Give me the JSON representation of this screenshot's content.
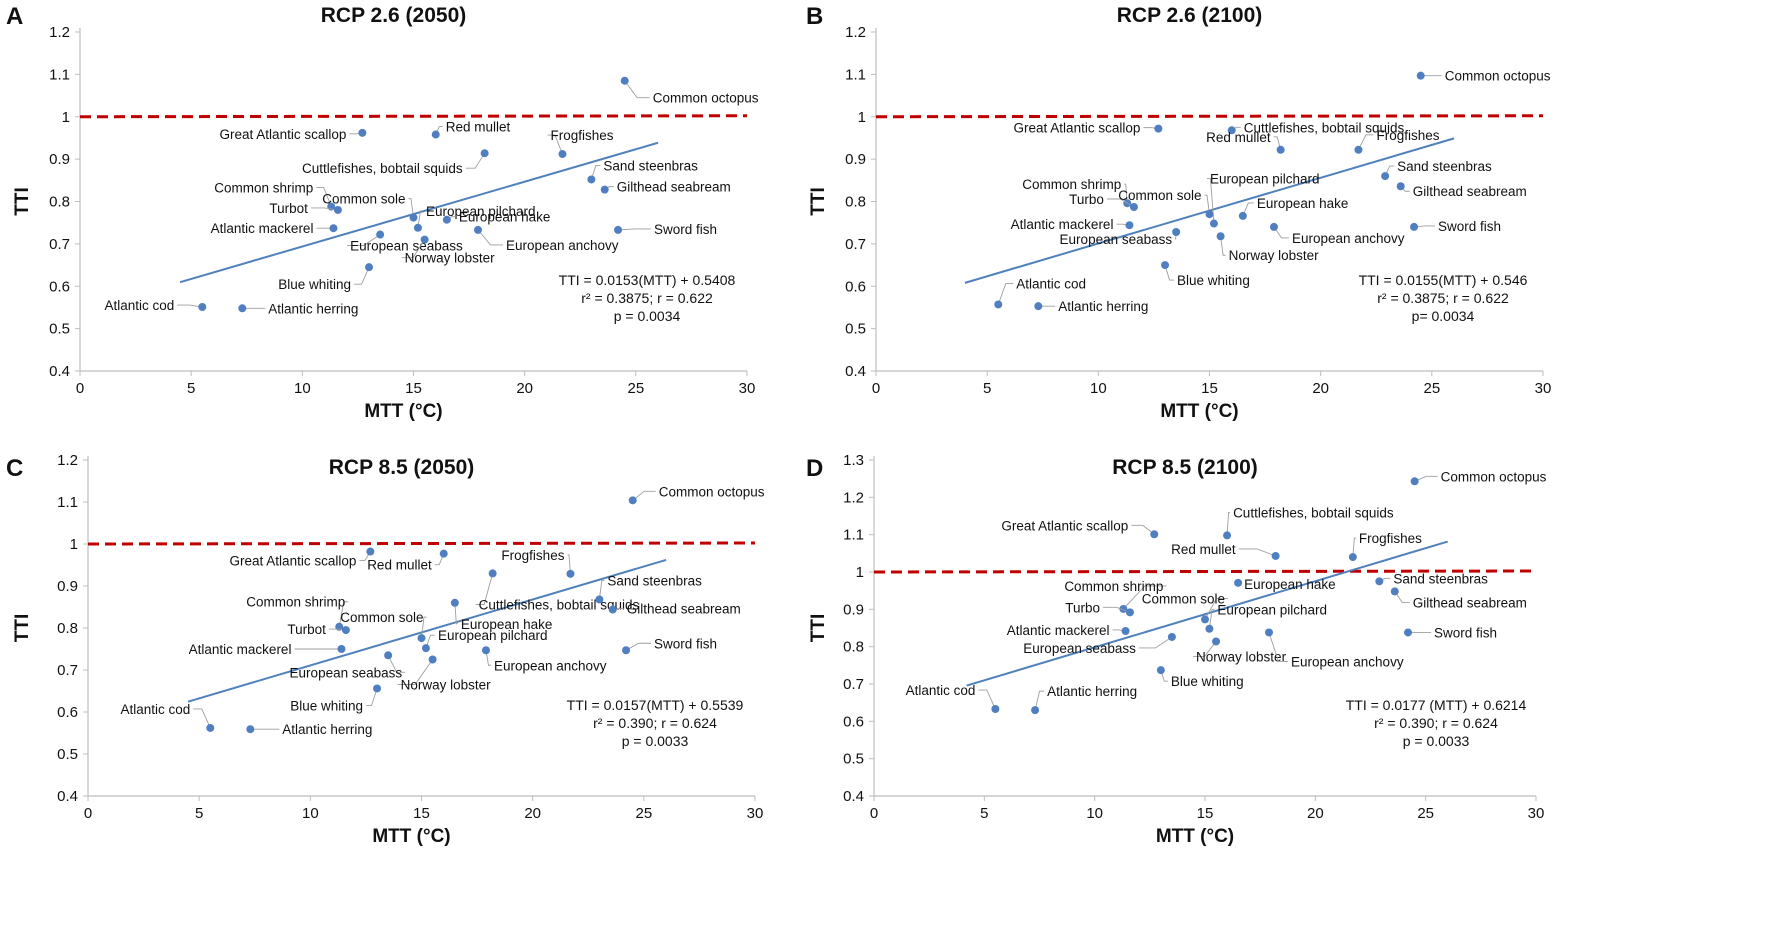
{
  "chart_data": [
    {
      "type": "scatter",
      "letter": "A",
      "title": "RCP 2.6 (2050)",
      "xlabel": "MTT (°C)",
      "ylabel": "TTI",
      "xlim": [
        0,
        30
      ],
      "ylim": [
        0.4,
        1.2
      ],
      "xticks": [
        "0",
        "5",
        "10",
        "15",
        "20",
        "25",
        "30"
      ],
      "yticks": [
        "0.4",
        "0.5",
        "0.6",
        "0.7",
        "0.8",
        "0.9",
        "1",
        "1.1",
        "1.2"
      ],
      "threshold": 1,
      "fit": {
        "x": [
          4.5,
          26
        ],
        "slope": 0.0153,
        "intercept": 0.5408
      },
      "equation_lines": [
        "TTI = 0.0153(MTT)  + 0.5408",
        "r² = 0.3875;  r = 0.622",
        "p = 0.0034"
      ],
      "points": [
        {
          "name": "Common octopus",
          "x": 24.5,
          "y": 1.085
        },
        {
          "name": "Great Atlantic scallop",
          "x": 12.7,
          "y": 0.962
        },
        {
          "name": "Red mullet",
          "x": 16.0,
          "y": 0.958
        },
        {
          "name": "Frogfishes",
          "x": 21.7,
          "y": 0.912
        },
        {
          "name": "Cuttlefishes,  bobtail squids",
          "x": 18.2,
          "y": 0.914
        },
        {
          "name": "Sand steenbras",
          "x": 23.0,
          "y": 0.852
        },
        {
          "name": "Gilthead seabream",
          "x": 23.6,
          "y": 0.828
        },
        {
          "name": "Common shrimp",
          "x": 11.3,
          "y": 0.788
        },
        {
          "name": "Turbot",
          "x": 11.6,
          "y": 0.78
        },
        {
          "name": "Common sole",
          "x": 15.0,
          "y": 0.762
        },
        {
          "name": "European pilchard",
          "x": 15.2,
          "y": 0.738
        },
        {
          "name": "European hake",
          "x": 16.5,
          "y": 0.757
        },
        {
          "name": "Atlantic mackerel",
          "x": 11.4,
          "y": 0.737
        },
        {
          "name": "European seabass",
          "x": 13.5,
          "y": 0.722
        },
        {
          "name": "Norway lobster",
          "x": 15.5,
          "y": 0.71
        },
        {
          "name": "European anchovy",
          "x": 17.9,
          "y": 0.733
        },
        {
          "name": "Sword fish",
          "x": 24.2,
          "y": 0.733
        },
        {
          "name": "Blue whiting",
          "x": 13.0,
          "y": 0.645
        },
        {
          "name": "Atlantic cod",
          "x": 5.5,
          "y": 0.551
        },
        {
          "name": "Atlantic herring",
          "x": 7.3,
          "y": 0.548
        }
      ]
    },
    {
      "type": "scatter",
      "letter": "B",
      "title": "RCP 2.6 (2100)",
      "xlabel": "MTT (°C)",
      "ylabel": "TTI",
      "xlim": [
        0,
        30
      ],
      "ylim": [
        0.4,
        1.2
      ],
      "xticks": [
        "0",
        "5",
        "10",
        "15",
        "20",
        "25",
        "30"
      ],
      "yticks": [
        "0.4",
        "0.5",
        "0.6",
        "0.7",
        "0.8",
        "0.9",
        "1",
        "1.1",
        "1.2"
      ],
      "threshold": 1,
      "fit": {
        "x": [
          4,
          26
        ],
        "slope": 0.0155,
        "intercept": 0.546
      },
      "equation_lines": [
        "TTI = 0.0155(MTT)  + 0.546",
        "r² = 0.3875;  r = 0.622",
        "p= 0.0034"
      ],
      "points": [
        {
          "name": "Common octopus",
          "x": 24.5,
          "y": 1.097
        },
        {
          "name": "Great Atlantic scallop",
          "x": 12.7,
          "y": 0.972
        },
        {
          "name": "Cuttlefishes,  bobtail squids",
          "x": 16.0,
          "y": 0.968
        },
        {
          "name": "Red mullet",
          "x": 18.2,
          "y": 0.922
        },
        {
          "name": "Frogfishes",
          "x": 21.7,
          "y": 0.922
        },
        {
          "name": "Sand steenbras",
          "x": 22.9,
          "y": 0.86
        },
        {
          "name": "Gilthead seabream",
          "x": 23.6,
          "y": 0.836
        },
        {
          "name": "Common shrimp",
          "x": 11.3,
          "y": 0.796
        },
        {
          "name": "Turbo",
          "x": 11.6,
          "y": 0.787
        },
        {
          "name": "European pilchard",
          "x": 15.2,
          "y": 0.748
        },
        {
          "name": "Common sole",
          "x": 15.0,
          "y": 0.77
        },
        {
          "name": "European hake",
          "x": 16.5,
          "y": 0.766
        },
        {
          "name": "Atlantic mackerel",
          "x": 11.4,
          "y": 0.744
        },
        {
          "name": "European seabass",
          "x": 13.5,
          "y": 0.728
        },
        {
          "name": "Norway lobster",
          "x": 15.5,
          "y": 0.718
        },
        {
          "name": "European anchovy",
          "x": 17.9,
          "y": 0.74
        },
        {
          "name": "Sword fish",
          "x": 24.2,
          "y": 0.74
        },
        {
          "name": "Blue whiting",
          "x": 13.0,
          "y": 0.65
        },
        {
          "name": "Atlantic cod",
          "x": 5.5,
          "y": 0.557
        },
        {
          "name": "Atlantic herring",
          "x": 7.3,
          "y": 0.553
        }
      ]
    },
    {
      "type": "scatter",
      "letter": "C",
      "title": "RCP 8.5 (2050)",
      "xlabel": "MTT (°C)",
      "ylabel": "TTI",
      "xlim": [
        0,
        30
      ],
      "ylim": [
        0.4,
        1.2
      ],
      "xticks": [
        "0",
        "5",
        "10",
        "15",
        "20",
        "25",
        "30"
      ],
      "yticks": [
        "0.4",
        "0.5",
        "0.6",
        "0.7",
        "0.8",
        "0.9",
        "1",
        "1.1",
        "1.2"
      ],
      "threshold": 1,
      "fit": {
        "x": [
          4.5,
          26
        ],
        "slope": 0.0157,
        "intercept": 0.5539
      },
      "equation_lines": [
        "TTI  = 0.0157(MTT)  + 0.5539",
        "r² = 0.390;  r = 0.624",
        "p = 0.0033"
      ],
      "points": [
        {
          "name": "Common octopus",
          "x": 24.5,
          "y": 1.104
        },
        {
          "name": "Great Atlantic scallop",
          "x": 12.7,
          "y": 0.982
        },
        {
          "name": "Red mullet",
          "x": 16.0,
          "y": 0.977
        },
        {
          "name": "Frogfishes",
          "x": 21.7,
          "y": 0.929
        },
        {
          "name": "Cuttlefishes,  bobtail squids",
          "x": 18.2,
          "y": 0.93
        },
        {
          "name": "Sand steenbras",
          "x": 23.0,
          "y": 0.868
        },
        {
          "name": "Gilthead seabream",
          "x": 23.6,
          "y": 0.844
        },
        {
          "name": "Common shrimp",
          "x": 11.3,
          "y": 0.803
        },
        {
          "name": "Turbot",
          "x": 11.6,
          "y": 0.795
        },
        {
          "name": "European hake",
          "x": 16.5,
          "y": 0.86
        },
        {
          "name": "Common sole",
          "x": 15.0,
          "y": 0.776
        },
        {
          "name": "European pilchard",
          "x": 15.2,
          "y": 0.752
        },
        {
          "name": "Atlantic mackerel",
          "x": 11.4,
          "y": 0.75
        },
        {
          "name": "European seabass",
          "x": 13.5,
          "y": 0.735
        },
        {
          "name": "Norway lobster",
          "x": 15.5,
          "y": 0.725
        },
        {
          "name": "European anchovy",
          "x": 17.9,
          "y": 0.747
        },
        {
          "name": "Sword fish",
          "x": 24.2,
          "y": 0.747
        },
        {
          "name": "Blue whiting",
          "x": 13.0,
          "y": 0.656
        },
        {
          "name": "Atlantic cod",
          "x": 5.5,
          "y": 0.562
        },
        {
          "name": "Atlantic herring",
          "x": 7.3,
          "y": 0.559
        }
      ]
    },
    {
      "type": "scatter",
      "letter": "D",
      "title": "RCP 8.5 (2100)",
      "xlabel": "MTT (°C)",
      "ylabel": "TTI",
      "xlim": [
        0,
        30
      ],
      "ylim": [
        0.4,
        1.3
      ],
      "xticks": [
        "0",
        "5",
        "10",
        "15",
        "20",
        "25",
        "30"
      ],
      "yticks": [
        "0.4",
        "0.5",
        "0.6",
        "0.7",
        "0.8",
        "0.9",
        "1",
        "1.1",
        "1.2",
        "1.3"
      ],
      "threshold": 1,
      "fit": {
        "x": [
          4.2,
          26
        ],
        "slope": 0.0177,
        "intercept": 0.6214
      },
      "equation_lines": [
        "TTI = 0.0177  (MTT)  + 0.6214",
        "r² = 0.390;  r = 0.624",
        "p = 0.0033"
      ],
      "points": [
        {
          "name": "Common octopus",
          "x": 24.5,
          "y": 1.243
        },
        {
          "name": "Great Atlantic scallop",
          "x": 12.7,
          "y": 1.101
        },
        {
          "name": "Cuttlefishes,  bobtail squids",
          "x": 16.0,
          "y": 1.098
        },
        {
          "name": "Red mullet",
          "x": 18.2,
          "y": 1.043
        },
        {
          "name": "Frogfishes",
          "x": 21.7,
          "y": 1.04
        },
        {
          "name": "Sand steenbras",
          "x": 22.9,
          "y": 0.975
        },
        {
          "name": "Gilthead seabream",
          "x": 23.6,
          "y": 0.948
        },
        {
          "name": "European hake",
          "x": 16.5,
          "y": 0.971
        },
        {
          "name": "Common shrimp",
          "x": 11.3,
          "y": 0.901
        },
        {
          "name": "Turbo",
          "x": 11.6,
          "y": 0.892
        },
        {
          "name": "Common sole",
          "x": 15.0,
          "y": 0.873
        },
        {
          "name": "European pilchard",
          "x": 15.2,
          "y": 0.848
        },
        {
          "name": "Atlantic mackerel",
          "x": 11.4,
          "y": 0.842
        },
        {
          "name": "European seabass",
          "x": 13.5,
          "y": 0.826
        },
        {
          "name": "Norway lobster",
          "x": 15.5,
          "y": 0.814
        },
        {
          "name": "European anchovy",
          "x": 17.9,
          "y": 0.838
        },
        {
          "name": "Sword fish",
          "x": 24.2,
          "y": 0.838
        },
        {
          "name": "Blue whiting",
          "x": 13.0,
          "y": 0.737
        },
        {
          "name": "Atlantic cod",
          "x": 5.5,
          "y": 0.633
        },
        {
          "name": "Atlantic herring",
          "x": 7.3,
          "y": 0.63
        }
      ]
    }
  ]
}
